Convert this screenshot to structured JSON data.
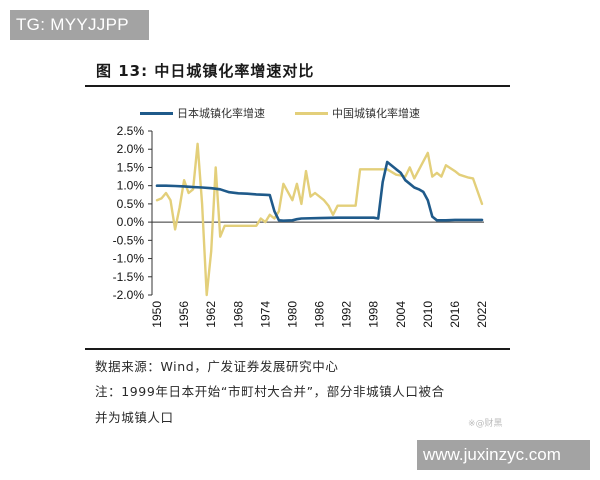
{
  "watermarks": {
    "top_left": "TG: MYYJJPP",
    "bottom_right_url": "www.juxinzyc.com",
    "weibo": "※@财黑"
  },
  "figure": {
    "title": "图 13: 中日城镇化率增速对比",
    "source": "数据来源：Wind，广发证券发展研究中心",
    "note_line1": "注：1999年日本开始“市町村大合并”，部分非城镇人口被合",
    "note_line2": "并为城镇人口"
  },
  "legend": {
    "japan": "日本城镇化率增速",
    "china": "中国城镇化率增速"
  },
  "colors": {
    "japan": "#1f5a8a",
    "china": "#e3cf7a",
    "axis": "#333333"
  },
  "chart_data": {
    "type": "line",
    "title": "中日城镇化率增速对比",
    "xlabel": "",
    "ylabel": "",
    "ylim": [
      -2.0,
      2.5
    ],
    "xlim": [
      1950,
      2022
    ],
    "y_ticks": [
      "2.5%",
      "2.0%",
      "1.5%",
      "1.0%",
      "0.5%",
      "0.0%",
      "-0.5%",
      "-1.0%",
      "-1.5%",
      "-2.0%"
    ],
    "x_ticks": [
      "1950",
      "1956",
      "1962",
      "1968",
      "1974",
      "1980",
      "1986",
      "1992",
      "1998",
      "2004",
      "2010",
      "2016",
      "2022"
    ],
    "grid": false,
    "legend_position": "top",
    "series": [
      {
        "name": "日本城镇化率增速",
        "color": "#1f5a8a",
        "points": [
          [
            1950,
            1.0
          ],
          [
            1952,
            1.0
          ],
          [
            1954,
            0.99
          ],
          [
            1956,
            0.98
          ],
          [
            1958,
            0.96
          ],
          [
            1960,
            0.95
          ],
          [
            1962,
            0.93
          ],
          [
            1964,
            0.9
          ],
          [
            1965,
            0.86
          ],
          [
            1966,
            0.82
          ],
          [
            1968,
            0.79
          ],
          [
            1970,
            0.78
          ],
          [
            1972,
            0.76
          ],
          [
            1974,
            0.75
          ],
          [
            1975,
            0.74
          ],
          [
            1976,
            0.3
          ],
          [
            1977,
            0.05
          ],
          [
            1978,
            0.04
          ],
          [
            1980,
            0.05
          ],
          [
            1981,
            0.08
          ],
          [
            1982,
            0.1
          ],
          [
            1986,
            0.11
          ],
          [
            1990,
            0.12
          ],
          [
            1994,
            0.12
          ],
          [
            1998,
            0.12
          ],
          [
            1999,
            0.1
          ],
          [
            2000,
            1.1
          ],
          [
            2001,
            1.65
          ],
          [
            2002,
            1.55
          ],
          [
            2003,
            1.45
          ],
          [
            2004,
            1.35
          ],
          [
            2005,
            1.15
          ],
          [
            2006,
            1.05
          ],
          [
            2007,
            0.95
          ],
          [
            2008,
            0.9
          ],
          [
            2009,
            0.83
          ],
          [
            2010,
            0.6
          ],
          [
            2011,
            0.15
          ],
          [
            2012,
            0.05
          ],
          [
            2014,
            0.05
          ],
          [
            2016,
            0.06
          ],
          [
            2018,
            0.06
          ],
          [
            2020,
            0.06
          ],
          [
            2022,
            0.06
          ]
        ]
      },
      {
        "name": "中国城镇化率增速",
        "color": "#e3cf7a",
        "points": [
          [
            1950,
            0.6
          ],
          [
            1951,
            0.65
          ],
          [
            1952,
            0.8
          ],
          [
            1953,
            0.6
          ],
          [
            1954,
            -0.2
          ],
          [
            1955,
            0.4
          ],
          [
            1956,
            1.15
          ],
          [
            1957,
            0.8
          ],
          [
            1958,
            0.9
          ],
          [
            1959,
            2.15
          ],
          [
            1960,
            0.5
          ],
          [
            1961,
            -2.0
          ],
          [
            1962,
            -0.8
          ],
          [
            1963,
            1.5
          ],
          [
            1964,
            -0.4
          ],
          [
            1965,
            -0.1
          ],
          [
            1968,
            -0.1
          ],
          [
            1972,
            -0.1
          ],
          [
            1973,
            0.1
          ],
          [
            1974,
            0.0
          ],
          [
            1975,
            0.2
          ],
          [
            1976,
            0.1
          ],
          [
            1977,
            0.3
          ],
          [
            1978,
            1.05
          ],
          [
            1980,
            0.6
          ],
          [
            1981,
            1.05
          ],
          [
            1982,
            0.5
          ],
          [
            1983,
            1.4
          ],
          [
            1984,
            0.7
          ],
          [
            1985,
            0.8
          ],
          [
            1987,
            0.6
          ],
          [
            1988,
            0.45
          ],
          [
            1989,
            0.2
          ],
          [
            1990,
            0.45
          ],
          [
            1992,
            0.45
          ],
          [
            1994,
            0.45
          ],
          [
            1995,
            1.45
          ],
          [
            1997,
            1.45
          ],
          [
            1999,
            1.45
          ],
          [
            2001,
            1.45
          ],
          [
            2003,
            1.3
          ],
          [
            2004,
            1.28
          ],
          [
            2005,
            1.25
          ],
          [
            2006,
            1.5
          ],
          [
            2007,
            1.2
          ],
          [
            2010,
            1.9
          ],
          [
            2011,
            1.25
          ],
          [
            2012,
            1.35
          ],
          [
            2013,
            1.25
          ],
          [
            2014,
            1.56
          ],
          [
            2016,
            1.4
          ],
          [
            2017,
            1.3
          ],
          [
            2019,
            1.22
          ],
          [
            2020,
            1.2
          ],
          [
            2022,
            0.5
          ]
        ]
      }
    ]
  }
}
